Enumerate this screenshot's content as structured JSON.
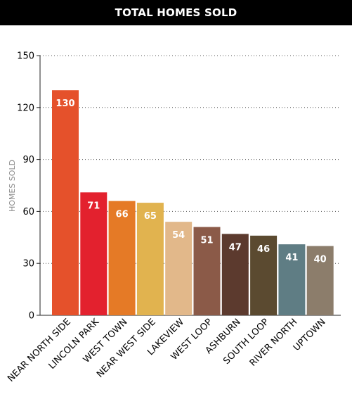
{
  "header": {
    "title": "TOTAL HOMES SOLD"
  },
  "chart_data": {
    "type": "bar",
    "title": "TOTAL HOMES SOLD",
    "ylabel": "HOMES SOLD",
    "xlabel": "",
    "ylim": [
      0,
      150
    ],
    "yticks": [
      0,
      30,
      60,
      90,
      120,
      150
    ],
    "grid": "horizontal dotted",
    "categories": [
      "NEAR NORTH SIDE",
      "LINCOLN PARK",
      "WEST TOWN",
      "NEAR WEST SIDE",
      "LAKEVIEW",
      "WEST LOOP",
      "ASHBURN",
      "SOUTH LOOP",
      "RIVER NORTH",
      "UPTOWN"
    ],
    "values": [
      130,
      71,
      66,
      65,
      54,
      51,
      47,
      46,
      41,
      40
    ],
    "colors": [
      "#e5512b",
      "#e3212e",
      "#e57a26",
      "#e1b34f",
      "#e2b88a",
      "#8b5a48",
      "#5c3a2e",
      "#5b4a30",
      "#5f7d84",
      "#8c7d6b"
    ]
  }
}
